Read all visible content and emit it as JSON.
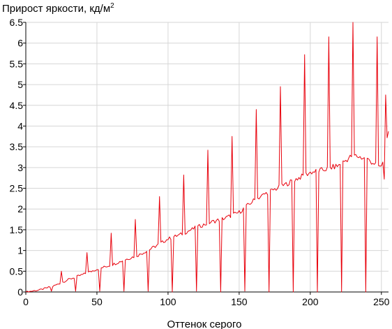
{
  "chart_data": {
    "type": "line",
    "ylabel": "Прирост яркости, кд/м",
    "ylabel_sup": "2",
    "xlabel": "Оттенок серого",
    "xlim": [
      0,
      255
    ],
    "ylim": [
      0,
      6.5
    ],
    "x_ticks": [
      0,
      50,
      100,
      150,
      200,
      250
    ],
    "y_ticks": [
      0,
      0.5,
      1,
      1.5,
      2,
      2.5,
      3,
      3.5,
      4,
      4.5,
      5,
      5.5,
      6,
      6.5
    ],
    "y_tick_labels": [
      "0",
      "0.5",
      "1",
      "1.5",
      "2",
      "2.5",
      "3",
      "3.5",
      "4",
      "4.5",
      "5",
      "5.5",
      "6",
      "6.5"
    ],
    "grid": true,
    "series_color": "#e8000b",
    "baseline": [
      [
        0,
        0
      ],
      [
        10,
        0.05
      ],
      [
        20,
        0.15
      ],
      [
        30,
        0.3
      ],
      [
        40,
        0.42
      ],
      [
        50,
        0.55
      ],
      [
        60,
        0.65
      ],
      [
        70,
        0.78
      ],
      [
        80,
        0.9
      ],
      [
        90,
        1.08
      ],
      [
        100,
        1.28
      ],
      [
        110,
        1.4
      ],
      [
        120,
        1.56
      ],
      [
        130,
        1.68
      ],
      [
        140,
        1.78
      ],
      [
        150,
        1.92
      ],
      [
        160,
        2.2
      ],
      [
        170,
        2.4
      ],
      [
        180,
        2.55
      ],
      [
        190,
        2.72
      ],
      [
        200,
        2.88
      ],
      [
        210,
        2.95
      ],
      [
        220,
        3.05
      ],
      [
        230,
        3.3
      ],
      [
        240,
        3.2
      ],
      [
        250,
        3.0
      ],
      [
        255,
        3.8
      ]
    ],
    "spikes_up": [
      [
        25,
        0.5
      ],
      [
        43,
        0.95
      ],
      [
        60,
        1.42
      ],
      [
        77,
        1.75
      ],
      [
        94,
        2.3
      ],
      [
        111,
        2.82
      ],
      [
        128,
        3.42
      ],
      [
        145,
        3.75
      ],
      [
        162,
        4.4
      ],
      [
        179,
        4.95
      ],
      [
        196,
        5.72
      ],
      [
        213,
        6.15
      ],
      [
        230,
        6.5
      ],
      [
        247,
        6.15
      ],
      [
        253,
        4.75
      ]
    ],
    "spikes_down": [
      [
        18,
        0.02
      ],
      [
        35,
        0.02
      ],
      [
        52,
        0.02
      ],
      [
        69,
        0.02
      ],
      [
        86,
        0.02
      ],
      [
        103,
        0
      ],
      [
        120,
        0.02
      ],
      [
        137,
        0
      ],
      [
        154,
        0.02
      ],
      [
        171,
        0
      ],
      [
        188,
        0
      ],
      [
        205,
        0
      ],
      [
        222,
        0
      ],
      [
        239,
        0
      ],
      [
        252,
        2.72
      ]
    ]
  }
}
